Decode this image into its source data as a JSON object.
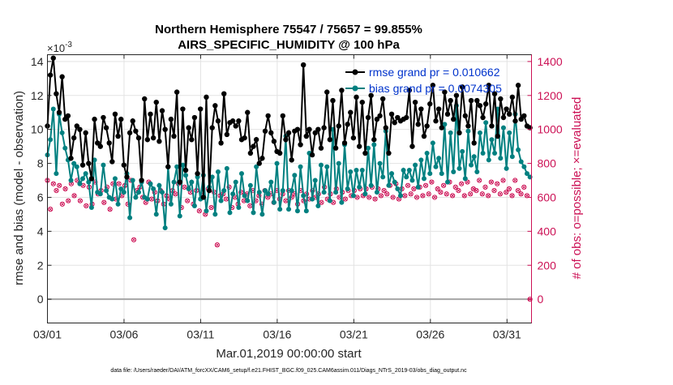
{
  "chart_data": {
    "type": "line",
    "title_line1": "Northern Hemisphere 75547 / 75657 = 99.855%",
    "title_line2": "AIRS_SPECIFIC_HUMIDITY @ 100 hPa",
    "xlabel": "Mar.01,2019 00:00:00 start",
    "ylabel_left": "rmse and bias (model - observation)",
    "ylabel_right": "# of obs: o=possible; ×=evaluated",
    "exponent_label": "×10",
    "exponent_power": "-3",
    "footer": "data file: /Users/raeder/DAI/ATM_forcXX/CAM6_setup/f.e21.FHIST_BGC.f09_025.CAM6assim.011/Diags_NTrS_2019-03/obs_diag_output.nc",
    "xlim": [
      0,
      31.6
    ],
    "ylim_left": [
      -1.4,
      14.4
    ],
    "ylim_right": [
      -140,
      1440
    ],
    "x_ticks": [
      0,
      5,
      10,
      15,
      20,
      25,
      30
    ],
    "x_tick_labels": [
      "03/01",
      "03/06",
      "03/11",
      "03/16",
      "03/21",
      "03/26",
      "03/31"
    ],
    "y_left_ticks": [
      0,
      2,
      4,
      6,
      8,
      10,
      12,
      14
    ],
    "y_left_tick_labels": [
      "0",
      "2",
      "4",
      "6",
      "8",
      "10",
      "12",
      "14"
    ],
    "y_right_ticks": [
      0,
      200,
      400,
      600,
      800,
      1000,
      1200,
      1400
    ],
    "y_right_tick_labels": [
      "0",
      "200",
      "400",
      "600",
      "800",
      "1000",
      "1200",
      "1400"
    ],
    "legend": [
      {
        "name": "rmse grand pr = 0.010662",
        "color": "#000000",
        "marker": "asterisk"
      },
      {
        "name": "bias grand pr = 0.0074305",
        "color": "#008080",
        "marker": "dot"
      }
    ],
    "legend_text_color": "#0033cc",
    "grid": true,
    "series": [
      {
        "name": "rmse",
        "color": "#000000",
        "units": "x1e-3",
        "values": [
          10.2,
          13.2,
          14.2,
          12.1,
          11.0,
          13.1,
          10.6,
          10.8,
          8.3,
          9.5,
          10.2,
          10.0,
          7.9,
          9.8,
          8.0,
          7.1,
          10.6,
          9.2,
          9.0,
          10.7,
          10.1,
          9.2,
          8.1,
          10.9,
          9.6,
          10.6,
          7.9,
          7.2,
          9.8,
          10.5,
          9.9,
          9.5,
          7.0,
          11.8,
          9.4,
          10.9,
          9.5,
          11.6,
          9.3,
          11.1,
          10.0,
          7.8,
          10.6,
          9.6,
          12.2,
          6.9,
          11.2,
          7.6,
          10.1,
          9.4,
          10.7,
          7.4,
          11.2,
          6.0,
          11.9,
          6.4,
          10.1,
          11.4,
          10.5,
          9.2,
          12.1,
          9.7,
          10.4,
          10.5,
          10.2,
          10.5,
          9.4,
          9.5,
          11.0,
          8.6,
          9.0,
          9.4,
          8.0,
          8.3,
          9.9,
          10.8,
          9.8,
          9.3,
          8.7,
          8.6,
          10.8,
          9.4,
          9.8,
          8.2,
          9.9,
          10.0,
          9.1,
          13.8,
          9.6,
          10.0,
          8.5,
          9.8,
          10.0,
          8.9,
          10.1,
          12.2,
          9.4,
          11.7,
          8.9,
          10.2,
          12.3,
          9.2,
          10.3,
          11.0,
          9.5,
          11.9,
          9.0,
          11.6,
          8.6,
          10.7,
          12.0,
          9.4,
          10.6,
          10.8,
          11.8,
          10.1,
          8.6,
          10.9,
          10.4,
          10.7,
          10.5,
          10.6,
          10.7,
          12.3,
          9.0,
          11.6,
          10.3,
          11.2,
          9.6,
          10.2,
          11.5,
          12.6,
          10.5,
          11.2,
          10.1,
          12.2,
          10.9,
          11.7,
          10.6,
          12.0,
          9.8,
          12.5,
          10.8,
          10.2,
          11.7,
          9.2,
          11.7,
          11.4,
          10.7,
          11.5,
          12.6,
          10.2,
          12.1,
          9.6,
          11.8,
          10.7,
          11.2,
          10.9,
          11.9,
          10.5,
          12.6,
          10.6,
          10.8,
          10.2,
          10.1
        ]
      },
      {
        "name": "bias",
        "color": "#008080",
        "units": "x1e-3",
        "values": [
          8.5,
          9.4,
          11.2,
          7.4,
          10.9,
          9.8,
          8.9,
          8.2,
          7.0,
          8.0,
          7.8,
          6.8,
          7.1,
          7.4,
          6.9,
          5.4,
          8.2,
          6.3,
          6.2,
          7.9,
          6.4,
          6.0,
          5.9,
          7.1,
          5.6,
          6.5,
          6.3,
          7.4,
          4.8,
          7.0,
          6.0,
          6.3,
          6.9,
          6.0,
          5.9,
          6.8,
          6.5,
          5.0,
          6.7,
          6.3,
          4.2,
          7.8,
          5.6,
          6.9,
          7.8,
          4.9,
          7.9,
          7.3,
          6.5,
          6.9,
          5.5,
          7.2,
          5.9,
          7.3,
          5.2,
          6.6,
          7.2,
          5.0,
          7.5,
          5.8,
          6.4,
          7.7,
          5.1,
          6.2,
          6.9,
          5.4,
          7.4,
          6.1,
          5.8,
          6.7,
          5.1,
          7.8,
          6.3,
          5.0,
          6.4,
          6.2,
          6.9,
          5.7,
          8.0,
          5.3,
          6.4,
          9.6,
          5.3,
          6.4,
          7.3,
          5.2,
          7.8,
          6.1,
          5.2,
          8.6,
          5.9,
          7.0,
          5.5,
          7.9,
          6.3,
          7.8,
          5.8,
          10.0,
          6.3,
          8.0,
          5.7,
          9.1,
          6.5,
          7.5,
          6.1,
          7.6,
          6.6,
          7.6,
          6.2,
          8.9,
          6.7,
          9.1,
          6.3,
          8.0,
          7.2,
          9.9,
          6.7,
          7.4,
          6.9,
          6.5,
          6.1,
          7.6,
          7.2,
          7.6,
          7.0,
          7.9,
          6.6,
          8.2,
          7.1,
          8.6,
          7.4,
          9.2,
          7.8,
          8.3,
          7.4,
          10.3,
          6.9,
          9.8,
          7.5,
          11.4,
          7.7,
          8.7,
          7.1,
          9.9,
          7.9,
          8.4,
          7.5,
          9.8,
          8.6,
          10.4,
          8.2,
          9.4,
          8.6,
          11.2,
          8.3,
          10.1,
          7.7,
          9.8,
          8.4,
          10.9,
          8.8,
          8.1,
          7.8,
          7.4,
          7.2
        ]
      },
      {
        "name": "obs_possible",
        "color": "#cc1155",
        "units": "count",
        "values": [
          700,
          530,
          680,
          640,
          670,
          560,
          650,
          580,
          680,
          610,
          700,
          580,
          670,
          550,
          660,
          560,
          690,
          620,
          640,
          570,
          660,
          530,
          680,
          590,
          680,
          610,
          670,
          560,
          700,
          350,
          640,
          660,
          600,
          570,
          690,
          590,
          630,
          580,
          640,
          560,
          610,
          590,
          640,
          620,
          680,
          540,
          660,
          580,
          630,
          560,
          640,
          520,
          610,
          500,
          650,
          540,
          630,
          320,
          610,
          620,
          590,
          660,
          540,
          600,
          560,
          630,
          580,
          620,
          550,
          640,
          580,
          610,
          560,
          640,
          600,
          620,
          570,
          640,
          590,
          620,
          580,
          640,
          600,
          620,
          560,
          640,
          580,
          620,
          590,
          640,
          600,
          620,
          570,
          660,
          590,
          620,
          570,
          650,
          600,
          630,
          590,
          640,
          610,
          640,
          600,
          650,
          610,
          650,
          600,
          660,
          590,
          650,
          610,
          640,
          620,
          670,
          600,
          680,
          590,
          650,
          610,
          670,
          620,
          650,
          600,
          660,
          610,
          670,
          620,
          690,
          600,
          650,
          630,
          670,
          620,
          690,
          610,
          660,
          640,
          680,
          610,
          690,
          620,
          650,
          640,
          700,
          620,
          660,
          610,
          690,
          640,
          680,
          620,
          700,
          630,
          650,
          610,
          700,
          640,
          620,
          660,
          610,
          0
        ]
      }
    ]
  }
}
